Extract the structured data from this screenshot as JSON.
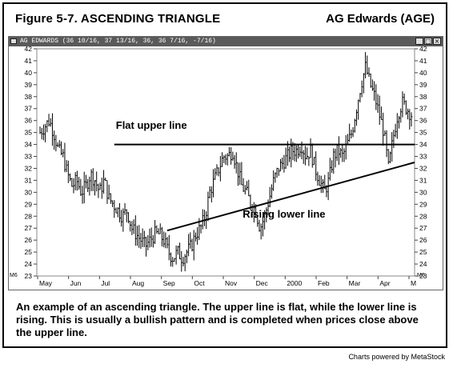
{
  "header": {
    "figure_title": "Figure 5-7. ASCENDING TRIANGLE",
    "company": "AG Edwards (AGE)"
  },
  "window": {
    "title": "AG EDWARDS (36 10/16, 37 13/16, 36, 36 7/16, -7/16)",
    "buttons": [
      "_",
      "□",
      "×"
    ]
  },
  "corner_labels": {
    "left": "M6",
    "right": "M6"
  },
  "chart_data": {
    "type": "ohlc",
    "title": "",
    "x_tick_labels": [
      "May",
      "Jun",
      "Jul",
      "Aug",
      "Sep",
      "Oct",
      "Nov",
      "Dec",
      "2000",
      "Feb",
      "Mar",
      "Apr",
      "M"
    ],
    "ylim": [
      23,
      42
    ],
    "y_ticks": [
      23,
      24,
      25,
      26,
      27,
      28,
      29,
      30,
      31,
      32,
      33,
      34,
      35,
      36,
      37,
      38,
      39,
      40,
      41,
      42
    ],
    "y_axis_both_sides": true,
    "grid": false,
    "approx_close_by_week": [
      35,
      35.5,
      36,
      35,
      33.5,
      33,
      31.5,
      30.5,
      31,
      30,
      30.5,
      31.5,
      31,
      30,
      31,
      29.5,
      29,
      28.5,
      28,
      28.5,
      27,
      26.5,
      26,
      25.5,
      26,
      26.5,
      26.5,
      26,
      25,
      24.5,
      25,
      24.5,
      25,
      25.5,
      26.5,
      27,
      28,
      30,
      31,
      32,
      33,
      33,
      33.5,
      32,
      30.5,
      30,
      29,
      28.5,
      27,
      28,
      29.5,
      31,
      32,
      32.5,
      33,
      33.5,
      33.5,
      34,
      33,
      33.5,
      32,
      31,
      30,
      31,
      33,
      33.5,
      33,
      34,
      35,
      37,
      39,
      40.5,
      39,
      38,
      36.5,
      35,
      32,
      34.5,
      36.5,
      37.5,
      37,
      36.5
    ],
    "annotations": [
      {
        "label": "Flat upper line",
        "line": [
          [
            0.205,
            34
          ],
          [
            1.0,
            34
          ]
        ]
      },
      {
        "label": "Rising lower line",
        "line": [
          [
            0.345,
            26.8
          ],
          [
            1.0,
            32.5
          ]
        ]
      }
    ]
  },
  "caption": "An example of an ascending triangle. The upper line is flat, while the lower line is rising. This is usually a bullish pattern and is completed when prices close above the upper line.",
  "credit": "Charts powered by MetaStock"
}
